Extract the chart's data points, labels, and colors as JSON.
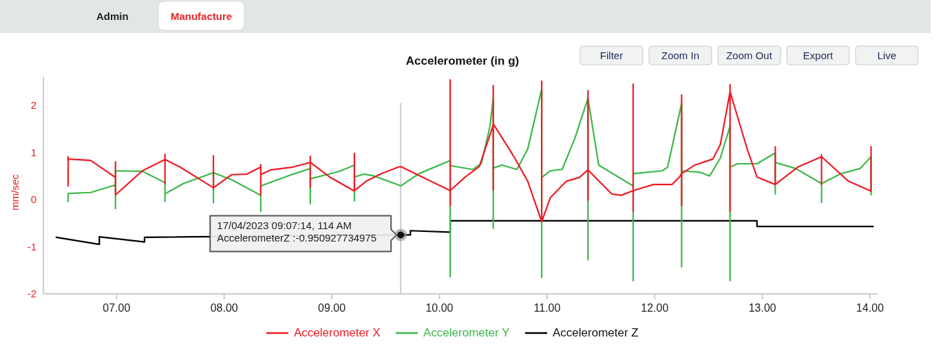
{
  "chart_data": {
    "type": "line",
    "title": "Accelerometer (in g)",
    "ylabel": "mm/sec",
    "xlim": [
      6.32,
      14.07
    ],
    "ylim": [
      -2,
      2.6
    ],
    "xticks": [
      {
        "value": 7,
        "label": "07.00"
      },
      {
        "value": 8,
        "label": "08.00"
      },
      {
        "value": 9,
        "label": "09.00"
      },
      {
        "value": 10,
        "label": "10.00"
      },
      {
        "value": 11,
        "label": "11.00"
      },
      {
        "value": 12,
        "label": "12.00"
      },
      {
        "value": 13,
        "label": "13.00"
      },
      {
        "value": 14,
        "label": "14.00"
      }
    ],
    "yticks": [
      -2,
      -1,
      0,
      1,
      2
    ],
    "grid": false,
    "legend": "bottom",
    "marker": "none",
    "line_style": "solid",
    "ref_lines": [
      {
        "axis": "x",
        "value": 9.64,
        "color": "#cccccc"
      }
    ],
    "annotations": [
      {
        "text": "17/04/2023 09:07:14, 114 AM\nAccelerometerZ :-0.950927734975",
        "x": 9.64,
        "y": -0.75
      },
      "Admin",
      "Manufacture",
      "Filter",
      "Zoom In",
      "Zoom Out",
      "Export",
      "Live"
    ],
    "series": [
      {
        "name": "Accelerometer X",
        "color": "#ee1c25",
        "x": [
          6.55,
          6.55,
          6.55,
          6.76,
          6.99,
          6.99,
          6.99,
          7.24,
          7.45,
          7.45,
          7.45,
          7.45,
          7.59,
          7.9,
          7.9,
          7.9,
          7.9,
          8.07,
          8.21,
          8.34,
          8.34,
          8.34,
          8.34,
          8.43,
          8.64,
          8.8,
          8.8,
          8.8,
          8.8,
          8.98,
          9.21,
          9.21,
          9.21,
          9.21,
          9.32,
          9.45,
          9.62,
          9.64,
          10.1,
          10.1,
          10.1,
          10.1,
          10.24,
          10.37,
          10.5,
          10.5,
          10.5,
          10.5,
          10.69,
          10.82,
          10.95,
          10.95,
          10.95,
          10.95,
          11.03,
          11.18,
          11.3,
          11.38,
          11.38,
          11.38,
          11.38,
          11.6,
          11.69,
          11.8,
          11.8,
          11.8,
          11.8,
          11.99,
          12.16,
          12.23,
          12.25,
          12.25,
          12.25,
          12.25,
          12.37,
          12.54,
          12.61,
          12.7,
          12.7,
          12.7,
          12.7,
          12.86,
          12.95,
          13.12,
          13.12,
          13.12,
          13.12,
          13.33,
          13.55,
          13.55,
          13.55,
          13.55,
          13.8,
          14.01,
          14.01,
          14.01
        ],
        "values": [
          0.29,
          0.91,
          0.86,
          0.83,
          0.47,
          0.8,
          0.1,
          0.61,
          0.85,
          0.96,
          0.34,
          0.85,
          0.69,
          0.25,
          0.93,
          0.22,
          0.25,
          0.53,
          0.54,
          0.69,
          0.74,
          0.1,
          0.53,
          0.63,
          0.69,
          0.79,
          0.92,
          0.26,
          0.79,
          0.48,
          0.18,
          0.98,
          0.34,
          0.19,
          0.39,
          0.54,
          0.69,
          0.7,
          0.19,
          2.54,
          -0.13,
          0.19,
          0.48,
          0.7,
          1.58,
          2.42,
          0.2,
          1.61,
          0.92,
          0.39,
          -0.47,
          2.51,
          0.2,
          -0.47,
          0.04,
          0.39,
          0.47,
          0.63,
          2.31,
          -0.01,
          0.63,
          0.12,
          0.09,
          0.19,
          2.45,
          -0.25,
          0.19,
          0.32,
          0.32,
          0.48,
          0.55,
          2.22,
          -0.13,
          0.55,
          0.73,
          0.86,
          1.17,
          2.29,
          2.44,
          -0.25,
          2.29,
          1.07,
          0.48,
          0.32,
          1.12,
          0.48,
          0.32,
          0.69,
          0.91,
          0.95,
          0.32,
          0.91,
          0.39,
          0.18,
          1.12,
          0.48
        ]
      },
      {
        "name": "Accelerometer Y",
        "color": "#3cb84a",
        "x": [
          6.55,
          6.55,
          6.76,
          6.99,
          6.99,
          6.99,
          7.24,
          7.45,
          7.45,
          7.45,
          7.62,
          7.9,
          7.9,
          7.9,
          8.07,
          8.34,
          8.34,
          8.34,
          8.64,
          8.8,
          8.8,
          8.8,
          9.07,
          9.21,
          9.21,
          9.21,
          9.3,
          9.38,
          9.62,
          9.64,
          9.81,
          10.1,
          10.1,
          10.1,
          10.31,
          10.39,
          10.47,
          10.5,
          10.5,
          10.5,
          10.58,
          10.72,
          10.82,
          10.95,
          10.95,
          10.95,
          11.03,
          11.14,
          11.26,
          11.38,
          11.38,
          11.38,
          11.48,
          11.8,
          11.8,
          11.8,
          12.07,
          12.12,
          12.25,
          12.25,
          12.25,
          12.42,
          12.51,
          12.61,
          12.7,
          12.7,
          12.7,
          12.77,
          12.95,
          13.12,
          13.12,
          13.12,
          13.31,
          13.55,
          13.55,
          13.55,
          13.73,
          13.91,
          14.01,
          14.01
        ],
        "values": [
          -0.04,
          0.13,
          0.15,
          0.31,
          -0.19,
          0.61,
          0.6,
          0.36,
          -0.04,
          0.12,
          0.34,
          0.57,
          -0.07,
          0.57,
          0.42,
          0.09,
          -0.25,
          0.29,
          0.54,
          0.66,
          -0.09,
          0.44,
          0.6,
          0.73,
          -0.03,
          0.48,
          0.54,
          0.51,
          0.31,
          0.29,
          0.55,
          0.83,
          -1.64,
          0.72,
          0.64,
          0.77,
          1.56,
          2.15,
          -0.61,
          0.67,
          0.73,
          0.64,
          1.07,
          2.34,
          -1.65,
          0.47,
          0.61,
          0.64,
          1.31,
          2.15,
          -1.28,
          2.15,
          0.73,
          0.29,
          -1.72,
          0.55,
          0.61,
          0.69,
          2.04,
          -1.43,
          0.61,
          0.58,
          0.5,
          0.88,
          1.56,
          -1.72,
          0.69,
          0.76,
          0.76,
          0.99,
          0.12,
          0.79,
          0.66,
          0.34,
          -0.06,
          0.34,
          0.55,
          0.66,
          0.91,
          0.1
        ]
      },
      {
        "name": "Accelerometer Z",
        "color": "#000000",
        "x": [
          6.44,
          6.84,
          6.84,
          7.26,
          7.26,
          9.64,
          9.73,
          9.73,
          10.1,
          10.1,
          12.95,
          12.95,
          14.03
        ],
        "values": [
          -0.8,
          -0.95,
          -0.79,
          -0.9,
          -0.8,
          -0.75,
          -0.75,
          -0.66,
          -0.69,
          -0.45,
          -0.45,
          -0.57,
          -0.57
        ]
      }
    ]
  }
}
